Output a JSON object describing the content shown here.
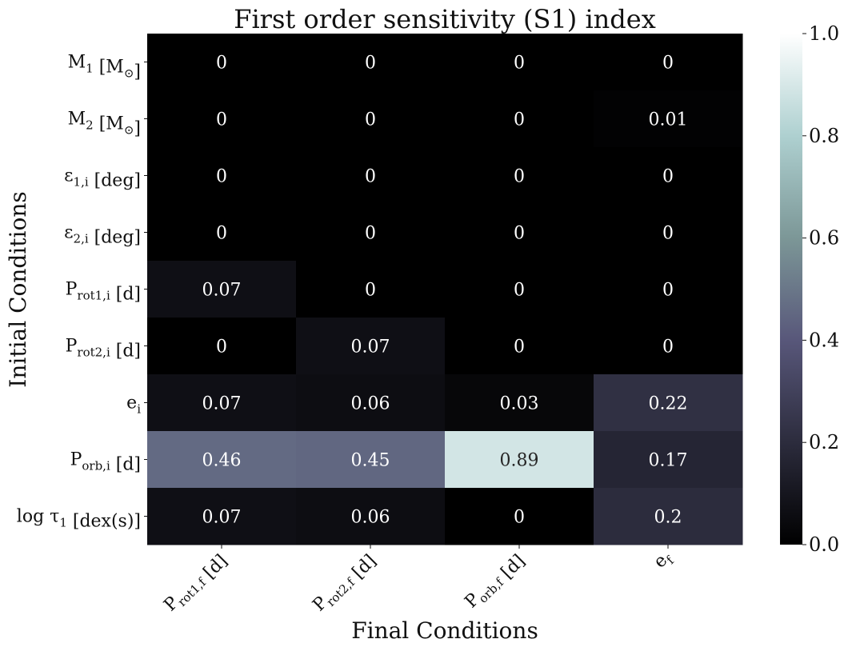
{
  "chart_data": {
    "type": "heatmap",
    "title": "First order sensitivity (S1) index",
    "xlabel": "Final Conditions",
    "ylabel": "Initial Conditions",
    "x_categories": [
      {
        "main": "P",
        "sub": "rot1,f",
        "unit": " [d]"
      },
      {
        "main": "P",
        "sub": "rot2,f",
        "unit": " [d]"
      },
      {
        "main": "P",
        "sub": "orb,f",
        "unit": " [d]"
      },
      {
        "main": "e",
        "sub": "f",
        "unit": ""
      }
    ],
    "y_categories": [
      {
        "main": "M",
        "sub": "1",
        "unit": " [M",
        "unit_sub": "⊙",
        "unit_end": "]"
      },
      {
        "main": "M",
        "sub": "2",
        "unit": " [M",
        "unit_sub": "⊙",
        "unit_end": "]"
      },
      {
        "main": "ε",
        "sub": "1,i",
        "unit": " [deg]",
        "unit_sub": "",
        "unit_end": ""
      },
      {
        "main": "ε",
        "sub": "2,i",
        "unit": " [deg]",
        "unit_sub": "",
        "unit_end": ""
      },
      {
        "main": "P",
        "sub": "rot1,i",
        "unit": " [d]",
        "unit_sub": "",
        "unit_end": ""
      },
      {
        "main": "P",
        "sub": "rot2,i",
        "unit": " [d]",
        "unit_sub": "",
        "unit_end": ""
      },
      {
        "main": "e",
        "sub": "i",
        "unit": "",
        "unit_sub": "",
        "unit_end": ""
      },
      {
        "main": "P",
        "sub": "orb,i",
        "unit": " [d]",
        "unit_sub": "",
        "unit_end": ""
      },
      {
        "main": "log τ",
        "sub": "1",
        "unit": " [dex(s)]",
        "unit_sub": "",
        "unit_end": ""
      }
    ],
    "values": [
      [
        0,
        0,
        0,
        0
      ],
      [
        0,
        0,
        0,
        0.01
      ],
      [
        0,
        0,
        0,
        0
      ],
      [
        0,
        0,
        0,
        0
      ],
      [
        0.07,
        0,
        0,
        0
      ],
      [
        0,
        0.07,
        0,
        0
      ],
      [
        0.07,
        0.06,
        0.03,
        0.22
      ],
      [
        0.46,
        0.45,
        0.89,
        0.17
      ],
      [
        0.07,
        0.06,
        0,
        0.2
      ]
    ],
    "labels": [
      [
        "0",
        "0",
        "0",
        "0"
      ],
      [
        "0",
        "0",
        "0",
        "0.01"
      ],
      [
        "0",
        "0",
        "0",
        "0"
      ],
      [
        "0",
        "0",
        "0",
        "0"
      ],
      [
        "0.07",
        "0",
        "0",
        "0"
      ],
      [
        "0",
        "0.07",
        "0",
        "0"
      ],
      [
        "0.07",
        "0.06",
        "0.03",
        "0.22"
      ],
      [
        "0.46",
        "0.45",
        "0.89",
        "0.17"
      ],
      [
        "0.07",
        "0.06",
        "0",
        "0.2"
      ]
    ],
    "colorbar": {
      "range": [
        0,
        1
      ],
      "ticks": [
        0,
        0.2,
        0.4,
        0.6,
        0.8,
        1.0
      ],
      "tick_labels": [
        "0.0",
        "0.2",
        "0.4",
        "0.6",
        "0.8",
        "1.0"
      ],
      "colormap": "bone",
      "colormap_stops": [
        "#000000",
        "#2c2c3d",
        "#58577a",
        "#7c9797",
        "#aed0d0",
        "#ffffff"
      ]
    },
    "grid": false
  }
}
